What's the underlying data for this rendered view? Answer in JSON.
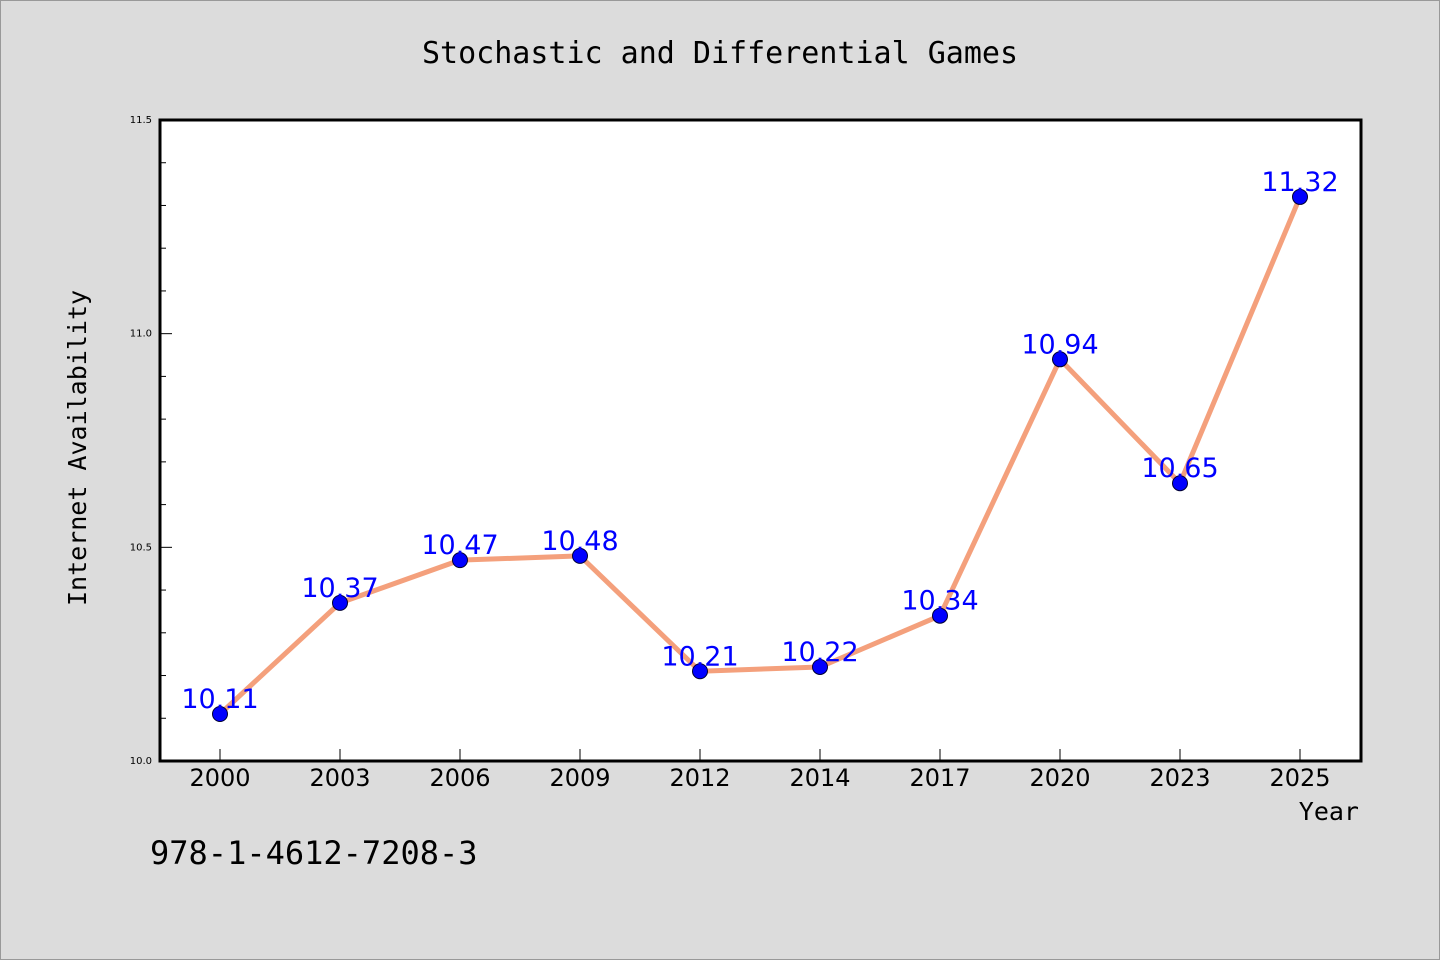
{
  "chart_data": {
    "type": "line",
    "title": "Stochastic and Differential Games",
    "xlabel": "Year",
    "ylabel": "Internet Availability",
    "categories": [
      "2000",
      "2003",
      "2006",
      "2009",
      "2012",
      "2014",
      "2017",
      "2020",
      "2023",
      "2025"
    ],
    "series": [
      {
        "values": [
          10.11,
          10.37,
          10.47,
          10.48,
          10.21,
          10.22,
          10.34,
          10.94,
          10.65,
          11.32
        ],
        "labels": [
          "10.11",
          "10.37",
          "10.47",
          "10.48",
          "10.21",
          "10.22",
          "10.34",
          "10.94",
          "10.65",
          "11.32"
        ],
        "line_color": "#f4a07c",
        "marker_color": "#0000ff",
        "label_color": "#0000ff"
      }
    ],
    "ylim": [
      10.0,
      11.5
    ],
    "yticks": [
      "10.0",
      "10.5",
      "11.0",
      "11.5"
    ],
    "grid": false
  },
  "footer": {
    "text": "978-1-4612-7208-3"
  }
}
